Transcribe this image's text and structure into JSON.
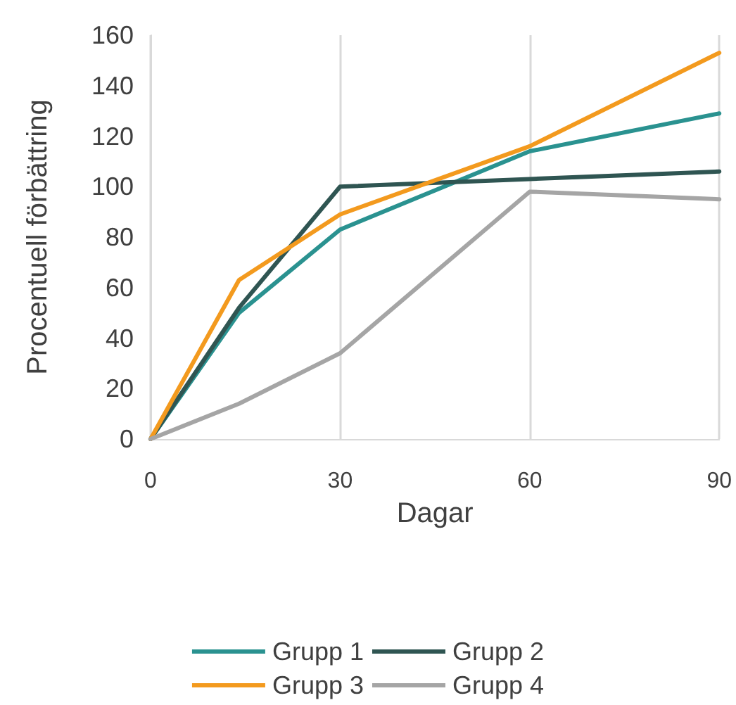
{
  "chart_data": {
    "type": "line",
    "xlabel": "Dagar",
    "ylabel": "Procentuell förbättring",
    "x": [
      0,
      14,
      30,
      60,
      90
    ],
    "series": [
      {
        "name": "Grupp 1",
        "color": "#2a9290",
        "values": [
          0,
          50,
          83,
          114,
          129
        ]
      },
      {
        "name": "Grupp 2",
        "color": "#2f5552",
        "values": [
          0,
          52,
          100,
          103,
          106
        ]
      },
      {
        "name": "Grupp 3",
        "color": "#f39a1e",
        "values": [
          0,
          63,
          89,
          116,
          153
        ]
      },
      {
        "name": "Grupp 4",
        "color": "#a5a5a5",
        "values": [
          0,
          14,
          34,
          98,
          95
        ]
      }
    ],
    "xlim": [
      0,
      90
    ],
    "xticks": [
      0,
      30,
      60,
      90
    ],
    "ylim": [
      0,
      160
    ],
    "yticks": [
      0,
      20,
      40,
      60,
      80,
      100,
      120,
      140,
      160
    ],
    "grid": "x",
    "legend": "bottom",
    "marker": "none",
    "line_style": "solid"
  }
}
